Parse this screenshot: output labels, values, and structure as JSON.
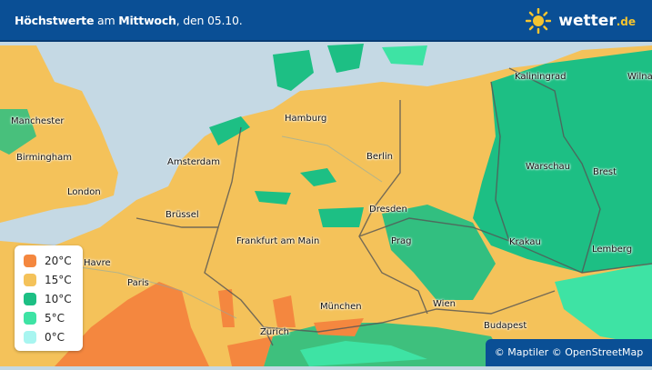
{
  "header": {
    "title_parts": [
      "Höchstwerte",
      " am ",
      "Mittwoch",
      ", den 05.10."
    ],
    "logo_text": "wetter",
    "logo_tld": ".de",
    "logo_icon": "sun-icon"
  },
  "map": {
    "cities": [
      "Manchester",
      "Birmingham",
      "London",
      "Amsterdam",
      "Hamburg",
      "Berlin",
      "Kaliningrad",
      "Wilna",
      "Warschau",
      "Brest",
      "Brüssel",
      "Dresden",
      "Frankfurt am Main",
      "Prag",
      "Krakau",
      "Lemberg",
      "Havre",
      "Paris",
      "München",
      "Wien",
      "Zürich",
      "Budapest"
    ]
  },
  "legend": {
    "items": [
      {
        "label": "20°C",
        "color": "#f4873f"
      },
      {
        "label": "15°C",
        "color": "#f4c25a"
      },
      {
        "label": "10°C",
        "color": "#1dbf84"
      },
      {
        "label": "5°C",
        "color": "#3ee3a4"
      },
      {
        "label": "0°C",
        "color": "#a8f5f0"
      }
    ]
  },
  "colors": {
    "header": "#0a4f95",
    "sea": "#c5d9e4",
    "accent": "#f4c430"
  },
  "attribution": "© Maptiler © OpenStreetMap"
}
